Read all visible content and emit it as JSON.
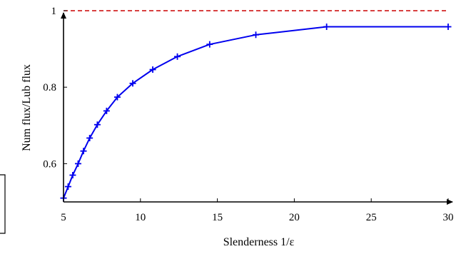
{
  "chart_data": {
    "type": "line",
    "xlabel": "Slenderness 1/ε",
    "ylabel": "Num flux/Lub flux",
    "xlim": [
      5,
      30
    ],
    "ylim": [
      0.5,
      1.0
    ],
    "x_ticks": [
      5,
      10,
      15,
      20,
      25,
      30
    ],
    "y_ticks": [
      0.6,
      0.8,
      1
    ],
    "x_tick_labels": [
      "5",
      "10",
      "15",
      "20",
      "25",
      "30"
    ],
    "y_tick_labels": [
      "0.6",
      "0.8",
      "1"
    ],
    "grid": false,
    "series": [
      {
        "color": "#0000ee",
        "marker": "plus",
        "x": [
          5.0,
          5.3,
          5.6,
          5.95,
          6.3,
          6.7,
          7.2,
          7.8,
          8.5,
          9.5,
          10.8,
          12.4,
          14.5,
          17.5,
          22.1,
          30.0
        ],
        "y": [
          0.51,
          0.54,
          0.57,
          0.6,
          0.633,
          0.667,
          0.702,
          0.738,
          0.774,
          0.81,
          0.846,
          0.88,
          0.912,
          0.937,
          0.958,
          0.958
        ]
      }
    ],
    "reference_lines": [
      {
        "y": 1.0,
        "color": "#cc0000",
        "style": "dashed"
      }
    ]
  }
}
